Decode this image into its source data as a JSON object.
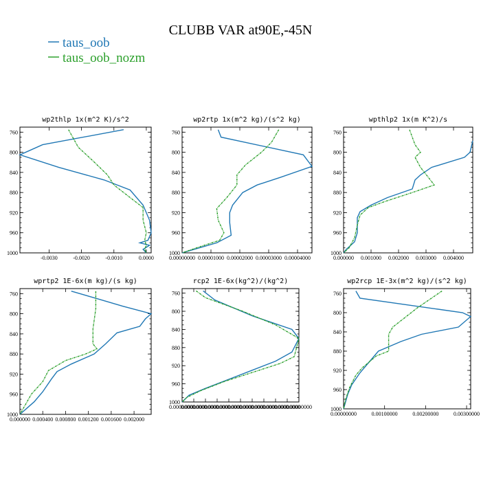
{
  "title": "CLUBB VAR at90E,-45N",
  "legend": [
    {
      "name": "taus_oob",
      "color": "#1f77b4"
    },
    {
      "name": "taus_oob_nozm",
      "color": "#2ca02c"
    }
  ],
  "chart_data": [
    {
      "type": "line",
      "title": "wp2thlp  1x(m^2 K)/s^2",
      "ylim": [
        1000,
        750
      ],
      "xlim": [
        -0.0039,
        0.00015
      ],
      "yticks": [
        760,
        800,
        840,
        880,
        920,
        960,
        1000
      ],
      "xticks": [
        -0.003,
        -0.002,
        -0.001,
        0.0
      ],
      "xtick_labels": [
        "-0.0030",
        "-0.0020",
        "-0.0010",
        "0.0000"
      ],
      "series": [
        {
          "name": "taus_oob",
          "points": [
            [
              -0.0007,
              755
            ],
            [
              -0.0032,
              785
            ],
            [
              -0.0039,
              805
            ],
            [
              -0.0027,
              830
            ],
            [
              -0.0013,
              855
            ],
            [
              -0.0005,
              875
            ],
            [
              -0.0001,
              905
            ],
            [
              0.0001,
              935
            ],
            [
              0.00015,
              960
            ],
            [
              5e-05,
              975
            ],
            [
              -0.0002,
              980
            ],
            [
              0.0001,
              985
            ],
            [
              -0.0001,
              993
            ],
            [
              0.0,
              1000
            ]
          ]
        },
        {
          "name": "taus_oob_nozm",
          "points": [
            [
              -0.0024,
              755
            ],
            [
              -0.0021,
              790
            ],
            [
              -0.0016,
              820
            ],
            [
              -0.0012,
              845
            ],
            [
              -0.001,
              865
            ],
            [
              -0.0005,
              890
            ],
            [
              -0.0001,
              910
            ],
            [
              -0.0001,
              935
            ],
            [
              0.0,
              960
            ],
            [
              -5e-05,
              975
            ],
            [
              0.0,
              985
            ],
            [
              -5e-05,
              993
            ],
            [
              0.0,
              1000
            ]
          ]
        }
      ]
    },
    {
      "type": "line",
      "title": "wp2rtp  1x(m^2 kg)/(s^2 kg)",
      "ylim": [
        1000,
        750
      ],
      "xlim": [
        0.0,
        4.5e-05
      ],
      "yticks": [
        760,
        800,
        840,
        880,
        920,
        960,
        1000
      ],
      "xticks": [
        0.0,
        1e-05,
        2e-05,
        3e-05,
        4e-05
      ],
      "xtick_labels": [
        "0.00000000",
        "0.00001000",
        "0.00002000",
        "0.00003000",
        "0.00004000"
      ],
      "series": [
        {
          "name": "taus_oob",
          "points": [
            [
              1.25e-05,
              755
            ],
            [
              1.35e-05,
              770
            ],
            [
              4.2e-05,
              805
            ],
            [
              4.5e-05,
              828
            ],
            [
              3.4e-05,
              850
            ],
            [
              2.6e-05,
              865
            ],
            [
              2.1e-05,
              880
            ],
            [
              1.75e-05,
              905
            ],
            [
              1.65e-05,
              920
            ],
            [
              1.65e-05,
              940
            ],
            [
              1.7e-05,
              965
            ],
            [
              1.2e-05,
              980
            ],
            [
              3e-06,
              995
            ],
            [
              0.0,
              1000
            ]
          ]
        },
        {
          "name": "taus_oob_nozm",
          "points": [
            [
              3.35e-05,
              755
            ],
            [
              3.1e-05,
              780
            ],
            [
              2.75e-05,
              800
            ],
            [
              2.2e-05,
              825
            ],
            [
              1.9e-05,
              845
            ],
            [
              1.9e-05,
              865
            ],
            [
              1.55e-05,
              890
            ],
            [
              1.2e-05,
              912
            ],
            [
              1.25e-05,
              935
            ],
            [
              1.45e-05,
              960
            ],
            [
              1.3e-05,
              975
            ],
            [
              5e-06,
              990
            ],
            [
              0.0,
              1000
            ]
          ]
        }
      ]
    },
    {
      "type": "line",
      "title": "wpthlp2  1x(m K^2)/s",
      "ylim": [
        1000,
        750
      ],
      "xlim": [
        0.0,
        0.0047
      ],
      "yticks": [
        760,
        800,
        840,
        880,
        920,
        960,
        1000
      ],
      "xticks": [
        0.0,
        0.001,
        0.002,
        0.003,
        0.004
      ],
      "xtick_labels": [
        "0.000000",
        "0.001000",
        "0.002000",
        "0.003000",
        "0.004000"
      ],
      "series": [
        {
          "name": "taus_oob",
          "points": [
            [
              0.0047,
              777
            ],
            [
              0.0046,
              800
            ],
            [
              0.0044,
              810
            ],
            [
              0.0032,
              830
            ],
            [
              0.0028,
              845
            ],
            [
              0.0026,
              855
            ],
            [
              0.0025,
              873
            ],
            [
              0.0016,
              890
            ],
            [
              0.001,
              905
            ],
            [
              0.0006,
              918
            ],
            [
              0.0005,
              930
            ],
            [
              0.0005,
              960
            ],
            [
              0.0004,
              978
            ],
            [
              0.0001,
              993
            ],
            [
              0.0,
              1000
            ]
          ]
        },
        {
          "name": "taus_oob_nozm",
          "points": [
            [
              0.0024,
              755
            ],
            [
              0.0026,
              785
            ],
            [
              0.0028,
              800
            ],
            [
              0.0026,
              810
            ],
            [
              0.0028,
              830
            ],
            [
              0.0033,
              865
            ],
            [
              0.0025,
              880
            ],
            [
              0.0015,
              898
            ],
            [
              0.0009,
              910
            ],
            [
              0.0006,
              925
            ],
            [
              0.0005,
              945
            ],
            [
              0.0004,
              970
            ],
            [
              0.0002,
              990
            ],
            [
              0.0,
              1000
            ]
          ]
        }
      ]
    },
    {
      "type": "line",
      "title": "wprtp2  1E-6x(m kg)/(s kg)",
      "ylim": [
        1000,
        750
      ],
      "xlim": [
        0.0,
        0.0023
      ],
      "yticks": [
        760,
        800,
        840,
        880,
        920,
        960,
        1000
      ],
      "xticks": [
        0.0,
        0.0004,
        0.0008,
        0.0012,
        0.0016,
        0.002
      ],
      "xtick_labels": [
        "0.000000",
        "0.000400",
        "0.000800",
        "0.001200",
        "0.001600",
        "0.002000"
      ],
      "series": [
        {
          "name": "taus_oob",
          "points": [
            [
              0.0009,
              755
            ],
            [
              0.00135,
              770
            ],
            [
              0.0018,
              785
            ],
            [
              0.0023,
              800
            ],
            [
              0.0022,
              810
            ],
            [
              0.0021,
              825
            ],
            [
              0.0017,
              838
            ],
            [
              0.0015,
              860
            ],
            [
              0.0013,
              880
            ],
            [
              0.0009,
              900
            ],
            [
              0.00065,
              915
            ],
            [
              0.00055,
              930
            ],
            [
              0.0004,
              955
            ],
            [
              0.00025,
              975
            ],
            [
              0.0001,
              990
            ],
            [
              0.0,
              1000
            ]
          ]
        },
        {
          "name": "taus_oob_nozm",
          "points": [
            [
              0.00133,
              755
            ],
            [
              0.00133,
              790
            ],
            [
              0.00128,
              830
            ],
            [
              0.00128,
              860
            ],
            [
              0.00135,
              870
            ],
            [
              0.00115,
              880
            ],
            [
              0.0008,
              893
            ],
            [
              0.0005,
              913
            ],
            [
              0.0004,
              935
            ],
            [
              0.0002,
              960
            ],
            [
              0.0001,
              980
            ],
            [
              0.0,
              1000
            ]
          ]
        }
      ]
    },
    {
      "type": "line",
      "title": "rcp2  1E-6x(kg^2)/(kg^2)",
      "ylim": [
        1000,
        750
      ],
      "xlim": [
        0.0,
        5e-09
      ],
      "yticks": [
        760,
        800,
        840,
        880,
        920,
        960,
        1000
      ],
      "xticks": [
        0.0,
        5e-10,
        1e-09,
        1.5e-09,
        2e-09,
        2.5e-09,
        3e-09,
        3.5e-09,
        4e-09,
        4.5e-09,
        5e-09
      ],
      "xtick_labels": [
        "0.00000000",
        "0.00000000",
        "0.00000000",
        "0.00000000",
        "0.00000000",
        "0.00000000",
        "0.00000000",
        "0.00000000",
        "0.00000000",
        "0.00000000",
        "0.00000000"
      ],
      "series": [
        {
          "name": "taus_oob",
          "points": [
            [
              9e-10,
              755
            ],
            [
              1.4e-09,
              775
            ],
            [
              3e-09,
              810
            ],
            [
              4.7e-09,
              840
            ],
            [
              5e-09,
              860
            ],
            [
              4.7e-09,
              890
            ],
            [
              4e-09,
              910
            ],
            [
              3e-09,
              930
            ],
            [
              2e-09,
              950
            ],
            [
              1e-09,
              970
            ],
            [
              3e-10,
              985
            ],
            [
              0.0,
              1000
            ]
          ]
        },
        {
          "name": "taus_oob_nozm",
          "points": [
            [
              6e-10,
              755
            ],
            [
              1e-09,
              770
            ],
            [
              2.6e-09,
              800
            ],
            [
              4e-09,
              830
            ],
            [
              5e-09,
              860
            ],
            [
              4.8e-09,
              900
            ],
            [
              4.2e-09,
              915
            ],
            [
              3e-09,
              935
            ],
            [
              1.8e-09,
              955
            ],
            [
              8e-10,
              975
            ],
            [
              2e-10,
              990
            ],
            [
              0.0,
              1000
            ]
          ]
        }
      ]
    },
    {
      "type": "line",
      "title": "wp2rcp  1E-3x(m^2 kg)/(s^2 kg)",
      "ylim": [
        1000,
        750
      ],
      "xlim": [
        0.0,
        0.0031
      ],
      "yticks": [
        760,
        800,
        840,
        880,
        920,
        960,
        1000
      ],
      "xticks": [
        0.0,
        0.001,
        0.002,
        0.003
      ],
      "xtick_labels": [
        "0.00000000",
        "0.00100000",
        "0.00200000",
        "0.00300000"
      ],
      "series": [
        {
          "name": "taus_oob",
          "points": [
            [
              0.0003,
              755
            ],
            [
              0.0004,
              770
            ],
            [
              0.0029,
              800
            ],
            [
              0.0031,
              808
            ],
            [
              0.0028,
              830
            ],
            [
              0.0019,
              845
            ],
            [
              0.0014,
              860
            ],
            [
              0.00085,
              880
            ],
            [
              0.00065,
              900
            ],
            [
              0.0004,
              925
            ],
            [
              0.0002,
              950
            ],
            [
              0.0001,
              970
            ],
            [
              0.0,
              1000
            ]
          ]
        },
        {
          "name": "taus_oob_nozm",
          "points": [
            [
              0.0024,
              755
            ],
            [
              0.0018,
              790
            ],
            [
              0.0012,
              830
            ],
            [
              0.0011,
              845
            ],
            [
              0.0011,
              880
            ],
            [
              0.0008,
              890
            ],
            [
              0.00045,
              915
            ],
            [
              0.0003,
              930
            ],
            [
              0.00015,
              955
            ],
            [
              5e-05,
              980
            ],
            [
              0.0,
              1000
            ]
          ]
        }
      ]
    }
  ]
}
